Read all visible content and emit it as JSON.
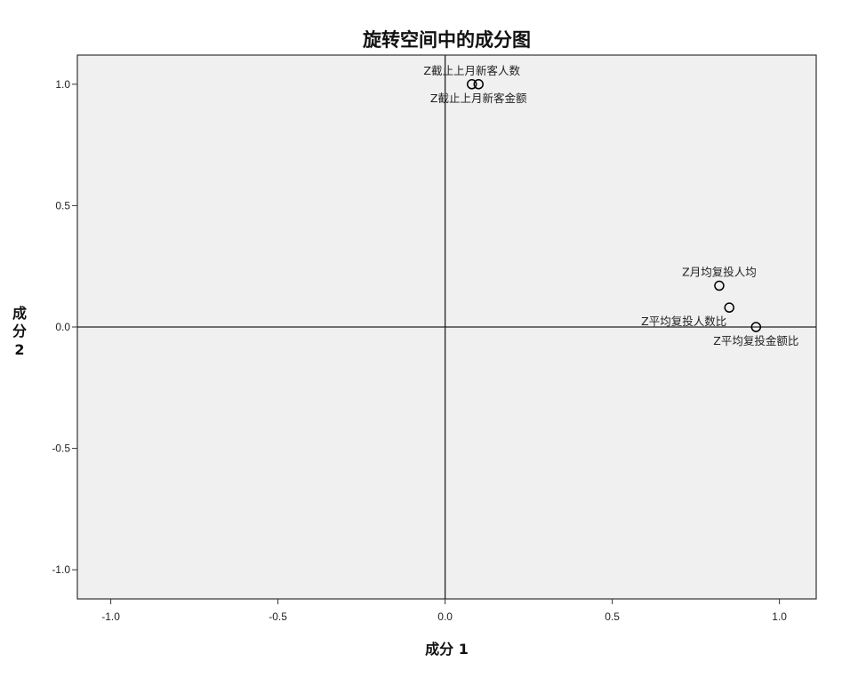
{
  "chart_data": {
    "type": "scatter",
    "title": "旋转空间中的成分图",
    "xlabel": "成分 1",
    "ylabel_lines": [
      "成",
      "分",
      "2"
    ],
    "xlim": [
      -1.1,
      1.11
    ],
    "ylim": [
      -1.12,
      1.12
    ],
    "x_ticks": [
      {
        "value": -1.0,
        "label": "-1.0"
      },
      {
        "value": -0.5,
        "label": "-0.5"
      },
      {
        "value": 0.0,
        "label": "0.0"
      },
      {
        "value": 0.5,
        "label": "0.5"
      },
      {
        "value": 1.0,
        "label": "1.0"
      }
    ],
    "y_ticks": [
      {
        "value": 1.0,
        "label": "1.0"
      },
      {
        "value": 0.5,
        "label": "0.5"
      },
      {
        "value": 0.0,
        "label": "0.0"
      },
      {
        "value": -0.5,
        "label": "-0.5"
      },
      {
        "value": -1.0,
        "label": "-1.0"
      }
    ],
    "reference_lines": {
      "x": 0,
      "y": 0
    },
    "grid": false,
    "background_color": "#f0f0f0",
    "point_color": "#000000",
    "points": [
      {
        "name": "Z截止上月新客人数",
        "x": 0.08,
        "y": 1.0,
        "label_anchor": "above"
      },
      {
        "name": "Z截止上月新客金额",
        "x": 0.1,
        "y": 1.0,
        "label_anchor": "below"
      },
      {
        "name": "Z月均复投人均",
        "x": 0.82,
        "y": 0.17,
        "label_anchor": "above"
      },
      {
        "name": "Z平均复投人数比",
        "x": 0.85,
        "y": 0.08,
        "label_anchor": "below-left"
      },
      {
        "name": "Z平均复投金额比",
        "x": 0.93,
        "y": 0.0,
        "label_anchor": "below"
      }
    ]
  }
}
